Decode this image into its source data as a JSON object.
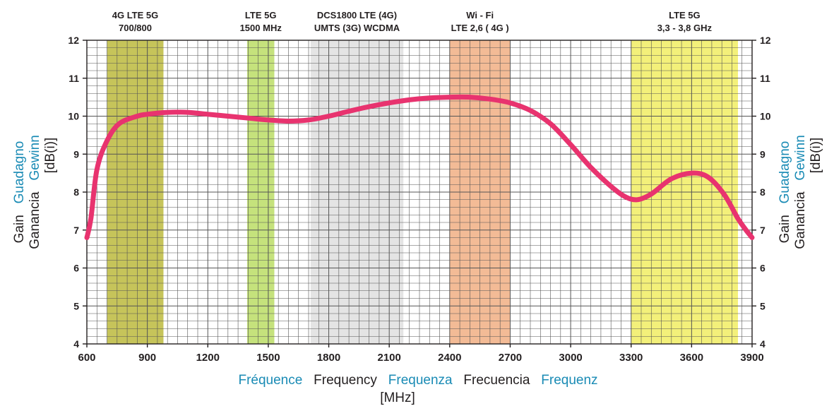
{
  "chart_data": {
    "type": "line",
    "x_unit_label": "[MHz]",
    "x_labels": [
      {
        "text": "Fréquence",
        "color": "#1a8bb5"
      },
      {
        "text": "Frequency",
        "color": "#231f20"
      },
      {
        "text": "Frequenza",
        "color": "#1a8bb5"
      },
      {
        "text": "Frecuencia",
        "color": "#231f20"
      },
      {
        "text": "Frequenz",
        "color": "#1a8bb5"
      }
    ],
    "y_left_labels": [
      {
        "text": "Gain",
        "color": "#231f20"
      },
      {
        "text": "Guadagno",
        "color": "#1a8bb5"
      },
      {
        "text": "Ganancia",
        "color": "#231f20"
      },
      {
        "text": "Gewinn",
        "color": "#1a8bb5"
      },
      {
        "text": "[dB(i)]",
        "color": "#231f20"
      }
    ],
    "xlim": [
      600,
      3900
    ],
    "ylim": [
      4,
      12
    ],
    "x_ticks": [
      600,
      900,
      1200,
      1500,
      1800,
      2100,
      2400,
      2700,
      3000,
      3300,
      3600,
      3900
    ],
    "y_ticks": [
      4,
      5,
      6,
      7,
      8,
      9,
      10,
      11,
      12
    ],
    "grid": true,
    "bands": [
      {
        "label1": "4G LTE 5G",
        "label2": "700/800",
        "from": 700,
        "to": 980,
        "color": "#c6c45a"
      },
      {
        "label1": "LTE 5G",
        "label2": "1500 MHz",
        "from": 1395,
        "to": 1530,
        "color": "#c5e27c"
      },
      {
        "label1": "DCS1800 LTE (4G)",
        "label2": "UMTS (3G) WCDMA",
        "from": 1710,
        "to": 2170,
        "color": "#e4e4e4"
      },
      {
        "label1": "Wi - Fi",
        "label2": "LTE 2,6 ( 4G )",
        "from": 2400,
        "to": 2700,
        "color": "#f3bb96"
      },
      {
        "label1": "LTE 5G",
        "label2": "3,3 - 3,8 GHz",
        "from": 3300,
        "to": 3830,
        "color": "#f3f07a"
      }
    ],
    "series": [
      {
        "color": "#e8336f",
        "x": [
          600,
          620,
          650,
          700,
          760,
          850,
          900,
          1000,
          1100,
          1200,
          1300,
          1400,
          1500,
          1600,
          1700,
          1800,
          1900,
          2000,
          2100,
          2200,
          2300,
          2400,
          2500,
          2600,
          2700,
          2800,
          2900,
          3000,
          3100,
          3200,
          3270,
          3330,
          3400,
          3500,
          3600,
          3680,
          3760,
          3830,
          3870,
          3900
        ],
        "y": [
          6.8,
          7.3,
          8.6,
          9.35,
          9.8,
          10.0,
          10.05,
          10.1,
          10.1,
          10.05,
          10.0,
          9.95,
          9.9,
          9.87,
          9.9,
          10.0,
          10.13,
          10.25,
          10.35,
          10.43,
          10.48,
          10.5,
          10.5,
          10.45,
          10.35,
          10.15,
          9.8,
          9.25,
          8.65,
          8.15,
          7.88,
          7.8,
          7.95,
          8.35,
          8.5,
          8.4,
          7.95,
          7.3,
          7.0,
          6.8
        ]
      }
    ]
  }
}
